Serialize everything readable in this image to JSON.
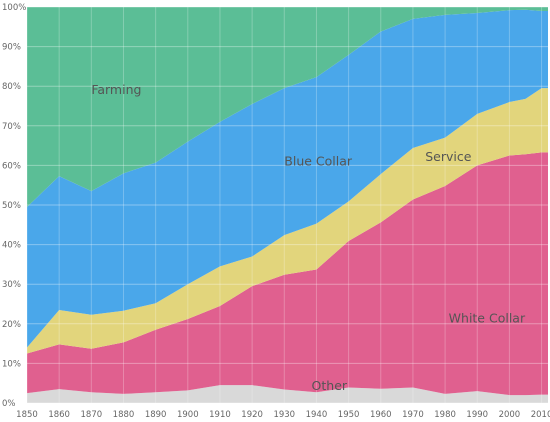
{
  "chart_data": {
    "type": "area",
    "stacked": true,
    "normalized": true,
    "x": [
      1850,
      1860,
      1870,
      1880,
      1890,
      1900,
      1910,
      1920,
      1930,
      1940,
      1950,
      1960,
      1970,
      1980,
      1990,
      2000,
      2005,
      2010
    ],
    "xticks": [
      "1850",
      "1860",
      "1870",
      "1880",
      "1890",
      "1900",
      "1910",
      "1920",
      "1930",
      "1940",
      "1950",
      "1960",
      "1970",
      "1980",
      "1990",
      "2000",
      "2010"
    ],
    "yticks": [
      "0%",
      "10%",
      "20%",
      "30%",
      "40%",
      "50%",
      "60%",
      "70%",
      "80%",
      "90%",
      "100%"
    ],
    "ylim": [
      0,
      100
    ],
    "grid": true,
    "series": [
      {
        "name": "Other",
        "color": "#d9d9d9",
        "values": [
          2.5,
          3.5,
          2.7,
          2.3,
          2.7,
          3.2,
          4.5,
          4.5,
          3.4,
          2.7,
          3.9,
          3.6,
          3.9,
          2.3,
          3.0,
          2.0,
          2.0,
          2.1
        ]
      },
      {
        "name": "White Collar",
        "color": "#e0608f",
        "values": [
          10.0,
          11.3,
          11.0,
          13.0,
          15.8,
          18.0,
          20.0,
          25.0,
          29.0,
          31.0,
          37.0,
          42.0,
          47.5,
          52.5,
          57.0,
          60.5,
          60.8,
          61.2
        ]
      },
      {
        "name": "Service",
        "color": "#e2d57c",
        "values": [
          1.5,
          8.7,
          8.6,
          8.0,
          6.7,
          8.8,
          10.0,
          7.5,
          10.0,
          11.6,
          10.0,
          12.2,
          13.0,
          12.2,
          13.0,
          13.5,
          14.0,
          16.2
        ]
      },
      {
        "name": "Blue Collar",
        "color": "#4aa7ea",
        "values": [
          35.5,
          33.8,
          31.2,
          34.7,
          35.5,
          36.0,
          36.5,
          38.5,
          37.1,
          37.0,
          37.0,
          36.0,
          32.6,
          31.0,
          25.5,
          23.2,
          22.5,
          19.5
        ]
      },
      {
        "name": "Farming",
        "color": "#5bbe96",
        "values": [
          50.5,
          42.7,
          46.5,
          42.0,
          39.3,
          34.0,
          29.0,
          24.5,
          20.5,
          17.7,
          12.1,
          6.2,
          3.0,
          2.0,
          1.5,
          0.8,
          0.7,
          1.0
        ]
      }
    ]
  }
}
